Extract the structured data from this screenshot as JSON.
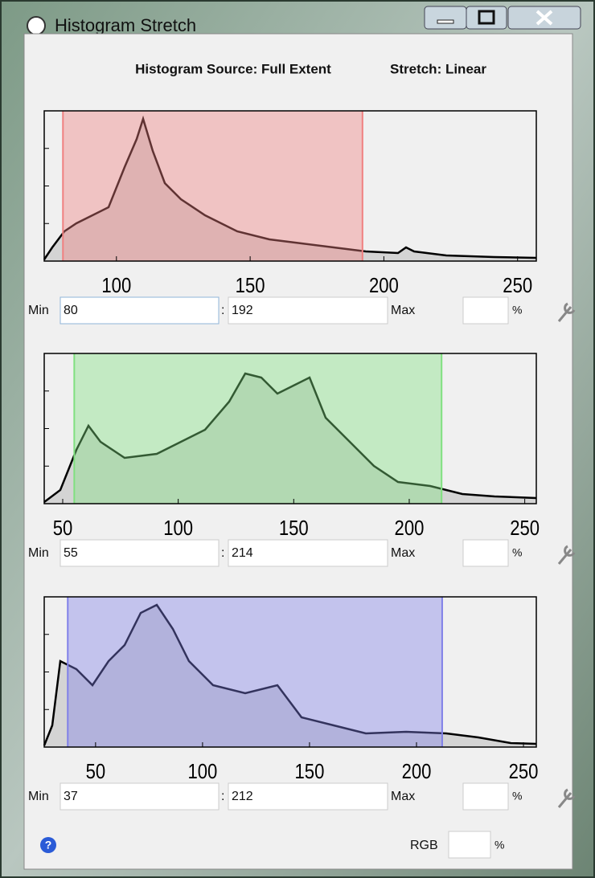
{
  "window": {
    "title": "Histogram Stretch"
  },
  "header": {
    "source": "Histogram Source: Full Extent",
    "stretch": "Stretch: Linear"
  },
  "panels": [
    {
      "xlim": [
        73,
        257
      ],
      "xticks": [
        100,
        150,
        200,
        250
      ],
      "color": "#f08080",
      "min_label": "Min",
      "min": 80,
      "separator": ":",
      "max": 192,
      "max_label": "Max",
      "percent": "%"
    },
    {
      "xlim": [
        42,
        255
      ],
      "xticks": [
        50,
        100,
        150,
        200,
        250
      ],
      "color": "#80e080",
      "min_label": "Min",
      "min": 55,
      "separator": ":",
      "max": 214,
      "max_label": "Max",
      "percent": "%"
    },
    {
      "xlim": [
        26,
        256
      ],
      "xticks": [
        50,
        100,
        150,
        200,
        250
      ],
      "color": "#8080e8",
      "min_label": "Min",
      "min": 37,
      "separator": ":",
      "max": 212,
      "max_label": "Max",
      "percent": "%"
    }
  ],
  "footer": {
    "help": "?",
    "rgb_label": "RGB",
    "percent": "%"
  }
}
